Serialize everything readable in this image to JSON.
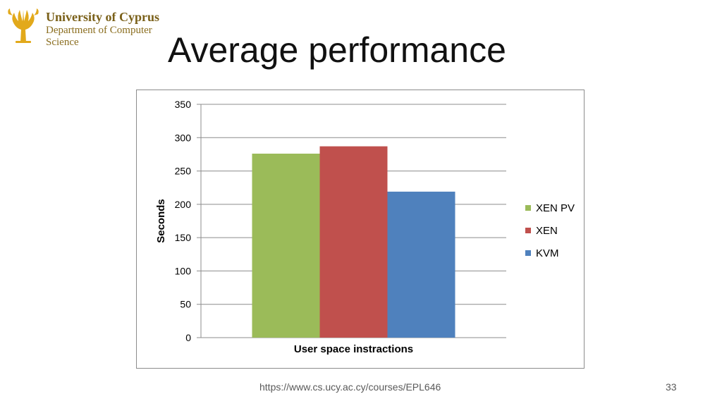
{
  "logo": {
    "line1": "University of Cyprus",
    "line2": "Department of Computer",
    "line3": "Science",
    "color": "#d4a017"
  },
  "title": "Average performance",
  "chart_data": {
    "type": "bar",
    "categories": [
      "User space instractions"
    ],
    "series": [
      {
        "name": "XEN PV",
        "values": [
          276
        ],
        "color": "#9bbb59"
      },
      {
        "name": "XEN",
        "values": [
          287
        ],
        "color": "#c0504d"
      },
      {
        "name": "KVM",
        "values": [
          219
        ],
        "color": "#4f81bd"
      }
    ],
    "xlabel": "User space instractions",
    "ylabel": "Seconds",
    "ylim": [
      0,
      350
    ],
    "yticks": [
      "0",
      "50",
      "100",
      "150",
      "200",
      "250",
      "300",
      "350"
    ],
    "grid": true,
    "legend": "right"
  },
  "footer": {
    "url": "https://www.cs.ucy.ac.cy/courses/EPL646",
    "page": "33"
  }
}
